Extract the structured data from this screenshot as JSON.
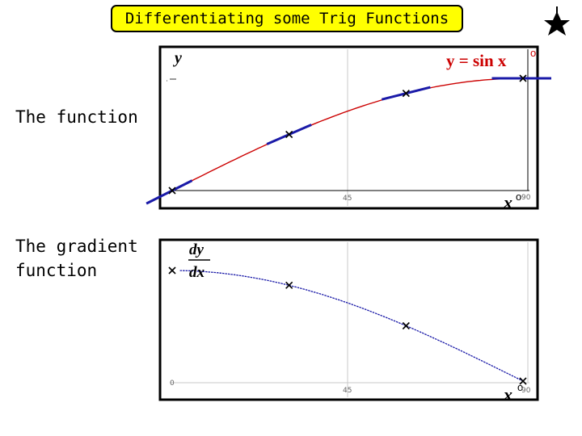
{
  "slide": {
    "title": "Differentiating some Trig Functions",
    "label_function": "The function",
    "label_gradient": "The gradient function"
  },
  "graphs": {
    "top": {
      "y_label": "y",
      "curve_label": "y = sin x",
      "degree_mark": "o",
      "x_label": "x",
      "x_tick_mid": "45",
      "x_tick_end": "90",
      "curve_color": "#cc0000",
      "tangent_color": "#1a1aa8"
    },
    "bottom": {
      "dy": "dy",
      "dx": "dx",
      "x_label": "x",
      "degree_mark": "o",
      "x_tick_mid": "45",
      "x_tick_end": "90",
      "origin_tick": "0",
      "curve_color": "#1a1aa8"
    }
  },
  "chart_data": [
    {
      "type": "line",
      "title": "y = sin x",
      "ylabel": "y",
      "xlabel": "x°",
      "xlim": [
        0,
        90
      ],
      "ylim": [
        0,
        1
      ],
      "series": [
        {
          "name": "y = sin x",
          "function": "sin x"
        }
      ],
      "marked_points": [
        {
          "x": 0,
          "y": 0
        },
        {
          "x": 30,
          "y": 0.5
        },
        {
          "x": 60,
          "y": 0.866
        },
        {
          "x": 90,
          "y": 1
        }
      ]
    },
    {
      "type": "line",
      "ylabel": "dy/dx",
      "xlabel": "x°",
      "xlim": [
        0,
        90
      ],
      "ylim": [
        0,
        1
      ],
      "series": [
        {
          "function": "cos x"
        }
      ],
      "marked_points": [
        {
          "x": 0,
          "y": 1
        },
        {
          "x": 30,
          "y": 0.866
        },
        {
          "x": 60,
          "y": 0.5
        },
        {
          "x": 90,
          "y": 0
        }
      ]
    }
  ]
}
